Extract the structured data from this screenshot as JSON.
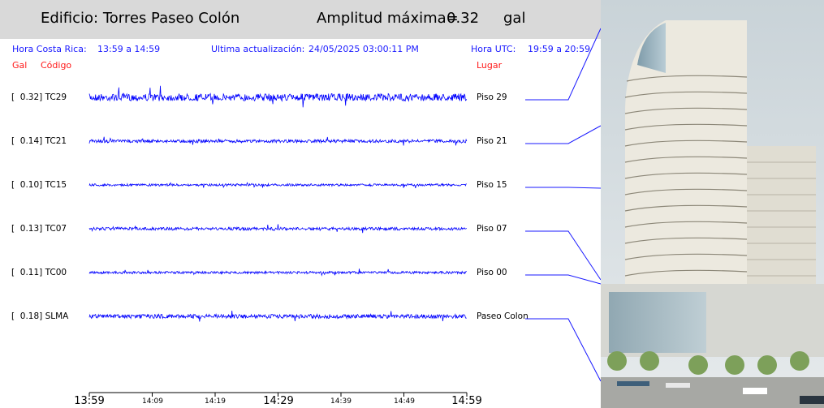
{
  "header": {
    "building_title": "Edificio: Torres Paseo Colón",
    "amplitude_label": "Amplitud máxima=",
    "amplitude_value": "0.32",
    "amplitude_unit": "gal"
  },
  "info": {
    "cr_time_label": "Hora Costa Rica:",
    "cr_time_range": "13:59 a 14:59",
    "update_label": "Ultima actualización:",
    "update_value": "24/05/2025 03:00:11 PM",
    "utc_label": "Hora UTC:",
    "utc_range": "19:59 a 20:59"
  },
  "columns": {
    "gal": "Gal",
    "code": "Código",
    "place": "Lugar"
  },
  "channels": [
    {
      "label": "[  0.32] TC29",
      "location": "Piso 29",
      "amplitude": 0.32
    },
    {
      "label": "[  0.14] TC21",
      "location": "Piso 21",
      "amplitude": 0.14
    },
    {
      "label": "[  0.10] TC15",
      "location": "Piso 15",
      "amplitude": 0.1
    },
    {
      "label": "[  0.13] TC07",
      "location": "Piso 07",
      "amplitude": 0.13
    },
    {
      "label": "[  0.11] TC00",
      "location": "Piso 00",
      "amplitude": 0.11
    },
    {
      "label": "[  0.18] SLMA",
      "location": "Paseo Colon",
      "amplitude": 0.18
    }
  ],
  "time_axis": {
    "major": [
      "13:59",
      "14:29",
      "14:59"
    ],
    "minor": [
      "14:09",
      "14:19",
      "14:39",
      "14:49"
    ]
  },
  "colors": {
    "header_bg": "#d9d9d9",
    "info_text": "#1a1aff",
    "column_text": "#ff1a1a",
    "trace": "#0000ff"
  },
  "image": {
    "subject": "building-photo"
  }
}
